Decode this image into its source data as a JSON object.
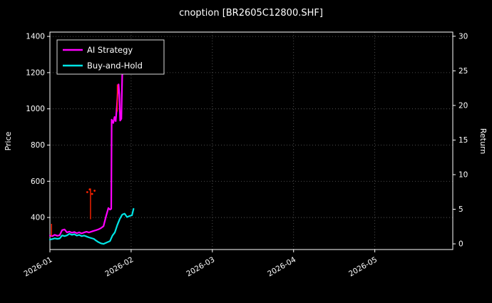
{
  "title": "cnoption [BR2605C12800.SHF]",
  "colors": {
    "background": "#000000",
    "text": "#ffffff",
    "grid": "#636363",
    "spine": "#ffffff",
    "legend_border": "#d9d9d9"
  },
  "chart_data": {
    "type": "line",
    "title": "cnoption [BR2605C12800.SHF]",
    "x_unit": "months since 2026-01-01",
    "xlim": [
      0,
      4.96
    ],
    "x_ticks": [
      {
        "pos": 0,
        "label": "2026-01"
      },
      {
        "pos": 1,
        "label": "2026-02"
      },
      {
        "pos": 2,
        "label": "2026-03"
      },
      {
        "pos": 3,
        "label": "2026-04"
      },
      {
        "pos": 4,
        "label": "2026-05"
      }
    ],
    "left_axis": {
      "label": "Price",
      "ticks": [
        400,
        600,
        800,
        1000,
        1200,
        1400
      ],
      "lim": [
        223,
        1424
      ]
    },
    "right_axis": {
      "label": "Return",
      "ticks": [
        0,
        5,
        10,
        15,
        20,
        25,
        30
      ],
      "lim": [
        -0.82,
        30.6
      ]
    },
    "grid": true,
    "legend_position": "upper left",
    "series": [
      {
        "name": "AI Strategy",
        "color": "#ff00ff",
        "width": 2.2,
        "axis": "left",
        "points": [
          [
            0.0,
            300
          ],
          [
            0.03,
            297
          ],
          [
            0.06,
            304
          ],
          [
            0.09,
            299
          ],
          [
            0.12,
            302
          ],
          [
            0.15,
            330
          ],
          [
            0.18,
            334
          ],
          [
            0.21,
            318
          ],
          [
            0.24,
            322
          ],
          [
            0.27,
            316
          ],
          [
            0.3,
            320
          ],
          [
            0.33,
            313
          ],
          [
            0.36,
            318
          ],
          [
            0.39,
            312
          ],
          [
            0.42,
            317
          ],
          [
            0.45,
            321
          ],
          [
            0.48,
            317
          ],
          [
            0.51,
            322
          ],
          [
            0.54,
            326
          ],
          [
            0.57,
            330
          ],
          [
            0.6,
            335
          ],
          [
            0.63,
            342
          ],
          [
            0.66,
            352
          ],
          [
            0.69,
            405
          ],
          [
            0.72,
            452
          ],
          [
            0.74,
            444
          ],
          [
            0.755,
            448
          ],
          [
            0.76,
            940
          ],
          [
            0.78,
            922
          ],
          [
            0.795,
            955
          ],
          [
            0.81,
            932
          ],
          [
            0.825,
            1020
          ],
          [
            0.835,
            1092
          ],
          [
            0.845,
            1135
          ],
          [
            0.855,
            1080
          ],
          [
            0.865,
            935
          ],
          [
            0.88,
            945
          ],
          [
            0.89,
            1185
          ],
          [
            0.905,
            1228
          ],
          [
            0.93,
            1205
          ],
          [
            0.96,
            1248
          ],
          [
            0.99,
            1232
          ],
          [
            1.03,
            1240
          ]
        ]
      },
      {
        "name": "Buy-and-Hold",
        "color": "#00e5e5",
        "width": 2.2,
        "axis": "left",
        "points": [
          [
            0.0,
            278
          ],
          [
            0.03,
            281
          ],
          [
            0.06,
            285
          ],
          [
            0.09,
            282
          ],
          [
            0.12,
            284
          ],
          [
            0.15,
            301
          ],
          [
            0.18,
            297
          ],
          [
            0.21,
            301
          ],
          [
            0.24,
            310
          ],
          [
            0.27,
            304
          ],
          [
            0.3,
            308
          ],
          [
            0.33,
            300
          ],
          [
            0.36,
            304
          ],
          [
            0.39,
            297
          ],
          [
            0.42,
            300
          ],
          [
            0.45,
            295
          ],
          [
            0.48,
            290
          ],
          [
            0.51,
            286
          ],
          [
            0.54,
            282
          ],
          [
            0.57,
            272
          ],
          [
            0.6,
            263
          ],
          [
            0.63,
            257
          ],
          [
            0.66,
            254
          ],
          [
            0.69,
            260
          ],
          [
            0.72,
            266
          ],
          [
            0.74,
            270
          ],
          [
            0.77,
            300
          ],
          [
            0.8,
            318
          ],
          [
            0.83,
            358
          ],
          [
            0.86,
            392
          ],
          [
            0.89,
            416
          ],
          [
            0.92,
            421
          ],
          [
            0.95,
            402
          ],
          [
            0.98,
            408
          ],
          [
            1.01,
            412
          ],
          [
            1.03,
            448
          ]
        ]
      }
    ],
    "event_marks": {
      "color": "#ff2200",
      "vertical_segments": [
        [
          0.02,
          298,
          365
        ],
        [
          0.5,
          390,
          560
        ],
        [
          0.83,
          985,
          1135
        ]
      ],
      "dots": [
        [
          0.46,
          540
        ],
        [
          0.49,
          555
        ],
        [
          0.52,
          530
        ],
        [
          0.55,
          548
        ]
      ]
    }
  }
}
